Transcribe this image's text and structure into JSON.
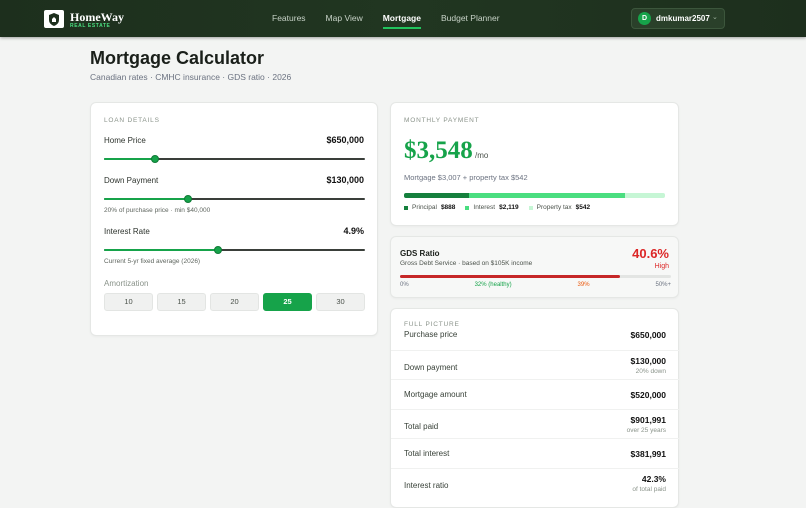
{
  "nav": {
    "brand": "HomeWay",
    "tagline": "REAL ESTATE",
    "links": [
      "Features",
      "Map View",
      "Mortgage",
      "Budget Planner"
    ],
    "active_link": 2,
    "user": {
      "initial": "D",
      "name": "dmkumar2507"
    }
  },
  "header": {
    "title": "Mortgage Calculator",
    "subtitle": "Canadian rates · CMHC insurance · GDS ratio · 2026"
  },
  "loan": {
    "heading": "LOAN DETAILS",
    "fields": [
      {
        "label": "Home Price",
        "value": "$650,000"
      },
      {
        "label": "Down Payment",
        "value": "$130,000",
        "note": "20% of purchase price · min $40,000"
      },
      {
        "label": "Interest Rate",
        "value": "4.9%",
        "note": "Current 5-yr fixed average (2026)"
      }
    ],
    "amortization": {
      "label": "Amortization",
      "options": [
        "10",
        "15",
        "20",
        "25",
        "30"
      ],
      "selected": 3
    }
  },
  "payment": {
    "heading": "MONTHLY PAYMENT",
    "amount": "$3,548",
    "unit": "/mo",
    "detail": "Mortgage $3,007 + property tax $542",
    "breakdown": [
      {
        "name": "Principal",
        "value": 888,
        "label": "$888",
        "color": "#15803d"
      },
      {
        "name": "Interest",
        "value": 2119,
        "label": "$2,119",
        "color": "#4ade80"
      },
      {
        "name": "Property tax",
        "value": 542,
        "label": "$542",
        "color": "#c6f6d5"
      }
    ]
  },
  "gds": {
    "title": "GDS Ratio",
    "subtitle": "Gross Debt Service · based on $105K income",
    "value": 40.6,
    "label": "40.6%",
    "status": "High",
    "range": [
      0,
      50
    ],
    "scale_labels": [
      "0%",
      "32% (healthy)",
      "39%",
      "50%+"
    ]
  },
  "summary": {
    "heading": "FULL PICTURE",
    "rows": [
      {
        "label": "Purchase price",
        "value": "$650,000"
      },
      {
        "label": "Down payment",
        "value": "$130,000",
        "note": "20% down"
      },
      {
        "label": "Mortgage amount",
        "value": "$520,000"
      },
      {
        "label": "Total paid",
        "value": "$901,991",
        "note": "over 25 years"
      },
      {
        "label": "Total interest",
        "value": "$381,991"
      },
      {
        "label": "Interest ratio",
        "value": "42.3%",
        "note": "of total paid"
      }
    ]
  }
}
